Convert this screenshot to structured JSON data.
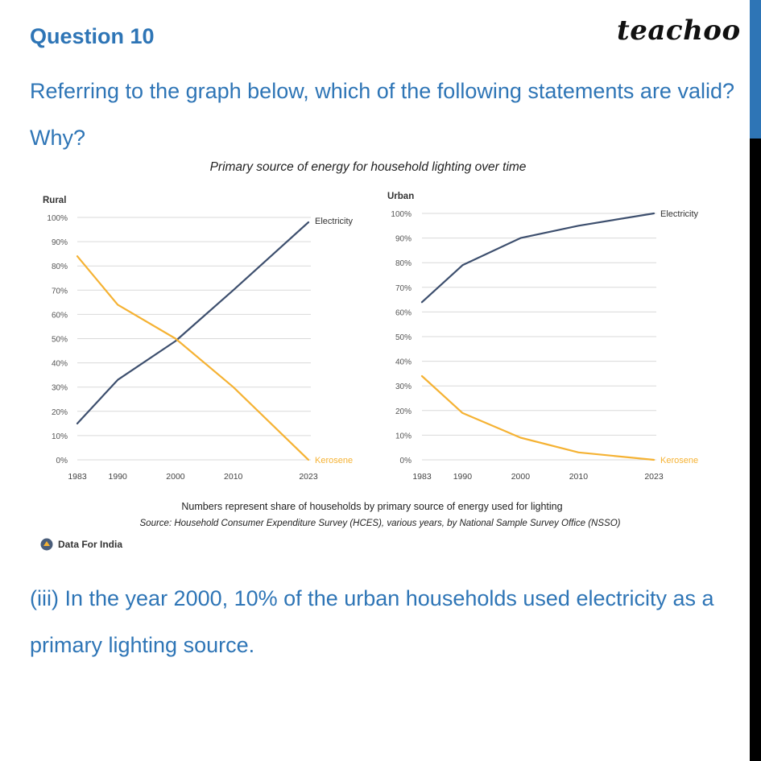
{
  "header": {
    "question_label": "Question 10",
    "brand": "teachoo"
  },
  "question_text": "Referring to the graph below, which of the following statements are valid? Why?",
  "option_text": "(iii) In the year 2000, 10% of the urban households used electricity as a primary lighting source.",
  "colors": {
    "accent": "#2e75b6",
    "electricity": "#3d4f6e",
    "kerosene": "#f5b233",
    "grid": "#d9d9d9"
  },
  "chart_data": {
    "type": "line",
    "title": "Primary source of energy for household lighting over time",
    "footnote": "Numbers represent share of households by primary source of energy used for lighting",
    "source": "Source: Household Consumer Expenditure Survey (HCES), various years, by National Sample Survey Office (NSSO)",
    "logo_text": "Data For India",
    "panels": [
      {
        "name": "Rural",
        "xlim": [
          1983,
          2023
        ],
        "ylim": [
          0,
          100
        ],
        "x_ticks": [
          "1983",
          "1990",
          "2000",
          "2010",
          "2023"
        ],
        "y_ticks": [
          "0%",
          "10%",
          "20%",
          "30%",
          "40%",
          "50%",
          "60%",
          "70%",
          "80%",
          "90%",
          "100%"
        ],
        "series": [
          {
            "name": "Electricity",
            "x": [
              1983,
              1990,
              2000,
              2010,
              2023
            ],
            "y": [
              15,
              33,
              49,
              70,
              98
            ]
          },
          {
            "name": "Kerosene",
            "x": [
              1983,
              1990,
              2000,
              2010,
              2023
            ],
            "y": [
              84,
              64,
              50,
              30,
              0
            ]
          }
        ]
      },
      {
        "name": "Urban",
        "xlim": [
          1983,
          2023
        ],
        "ylim": [
          0,
          100
        ],
        "x_ticks": [
          "1983",
          "1990",
          "2000",
          "2010",
          "2023"
        ],
        "y_ticks": [
          "0%",
          "10%",
          "20%",
          "30%",
          "40%",
          "50%",
          "60%",
          "70%",
          "80%",
          "90%",
          "100%"
        ],
        "series": [
          {
            "name": "Electricity",
            "x": [
              1983,
              1990,
              2000,
              2010,
              2023
            ],
            "y": [
              64,
              79,
              90,
              95,
              100
            ]
          },
          {
            "name": "Kerosene",
            "x": [
              1983,
              1990,
              2000,
              2010,
              2023
            ],
            "y": [
              34,
              19,
              9,
              3,
              0
            ]
          }
        ]
      }
    ]
  }
}
